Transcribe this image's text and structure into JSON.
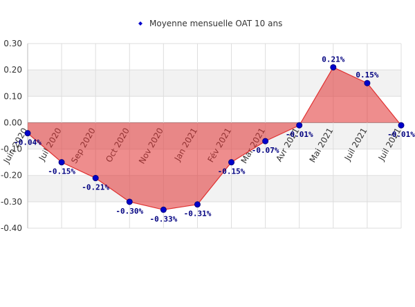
{
  "chart_data": {
    "type": "area",
    "categories": [
      "Juin 2020",
      "Juil 2020",
      "Sep 2020",
      "Oct 2020",
      "Nov 2020",
      "Jan 2021",
      "Fév 2021",
      "Mar 2021",
      "Avr 2021",
      "Mai 2021",
      "Juil 2021",
      "Juil 2021"
    ],
    "series": [
      {
        "name": "Moyenne mensuelle OAT 10 ans",
        "color": "#e03030",
        "marker_color": "#0000cc",
        "values": [
          -0.04,
          -0.15,
          -0.21,
          -0.3,
          -0.33,
          -0.31,
          -0.15,
          -0.07,
          -0.01,
          0.21,
          0.15,
          -0.01
        ],
        "value_labels": [
          "-0.04%",
          "-0.15%",
          "-0.21%",
          "-0.30%",
          "-0.33%",
          "-0.31%",
          "-0.15%",
          "-0.07%",
          "-0.01%",
          "0.21%",
          "0.15%",
          "-0.01%"
        ]
      }
    ],
    "ylim": [
      -0.4,
      0.3
    ],
    "yticks": [
      {
        "value": -0.4,
        "label": "-0.40"
      },
      {
        "value": -0.3,
        "label": "-0.30"
      },
      {
        "value": -0.2,
        "label": "-0.20"
      },
      {
        "value": -0.1,
        "label": "-0.10"
      },
      {
        "value": 0,
        "label": "0.00"
      },
      {
        "value": 0.1,
        "label": "0.10"
      },
      {
        "value": 0.2,
        "label": "0.20"
      },
      {
        "value": 0.3,
        "label": "0.30"
      }
    ],
    "grid": true,
    "legend": "top"
  }
}
